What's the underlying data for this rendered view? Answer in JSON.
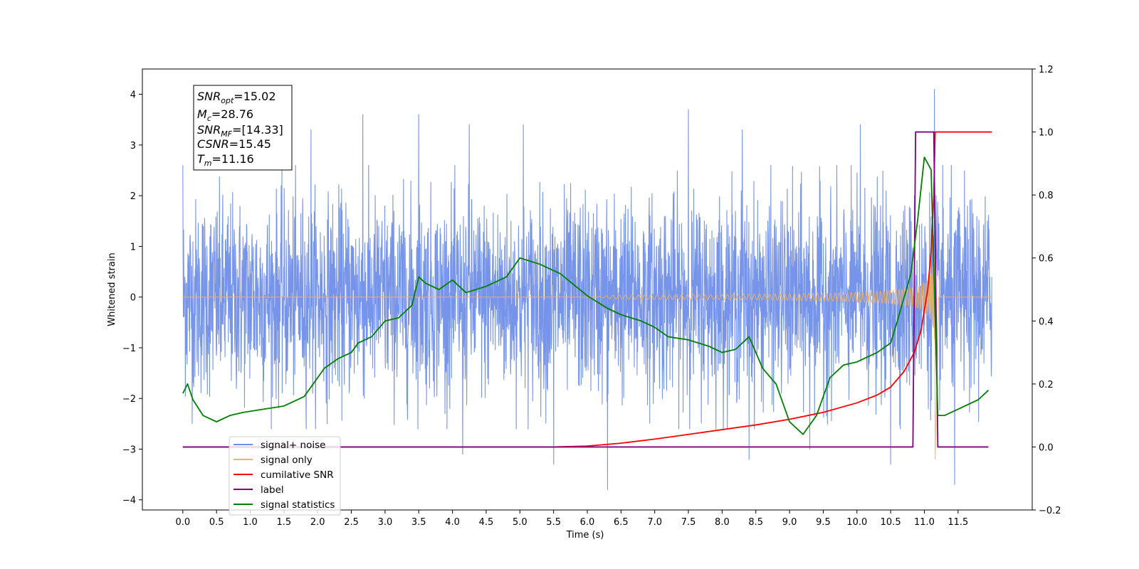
{
  "chart_data": {
    "type": "line",
    "xlabel": "Time (s)",
    "ylabel": "Whitened strain",
    "xlim": [
      -0.6,
      12.6
    ],
    "ylim": [
      -4.2,
      4.5
    ],
    "y2lim": [
      -0.2,
      1.2
    ],
    "xticks": [
      "0.0",
      "0.5",
      "1.0",
      "1.5",
      "2.0",
      "2.5",
      "3.0",
      "3.5",
      "4.0",
      "4.5",
      "5.0",
      "5.5",
      "6.0",
      "6.5",
      "7.0",
      "7.5",
      "8.0",
      "8.5",
      "9.0",
      "9.5",
      "10.0",
      "10.5",
      "11.0",
      "11.5"
    ],
    "yticks": [
      "4",
      "3",
      "2",
      "1",
      "0",
      "−1",
      "−2",
      "−3",
      "−4"
    ],
    "y2ticks": [
      "1.2",
      "1.0",
      "0.8",
      "0.6",
      "0.4",
      "0.2",
      "0.0",
      "−0.2"
    ],
    "annotation": {
      "lines": [
        {
          "sym": "SNR",
          "sub": "opt",
          "value": "=15.02"
        },
        {
          "sym": "M",
          "sub": "c",
          "value": "=28.76"
        },
        {
          "sym": "SNR",
          "sub": "MF",
          "value": "=[14.33]"
        },
        {
          "sym": "CSNR",
          "sub": "",
          "value": "=15.45"
        },
        {
          "sym": "T",
          "sub": "m",
          "value": "=11.16"
        }
      ]
    },
    "legend": {
      "placement": "lower-left",
      "entries": [
        {
          "label": "signal+ noise",
          "color": "#6f8ee8"
        },
        {
          "label": "signal only",
          "color": "#f5b25a"
        },
        {
          "label": "cumilative SNR",
          "color": "#ff0000"
        },
        {
          "label": "label",
          "color": "#800080"
        },
        {
          "label": "signal statistics",
          "color": "#008000"
        }
      ]
    },
    "series": [
      {
        "name": "signal+ noise",
        "axis": "left",
        "kind": "noise",
        "x_range": [
          0.0,
          12.0
        ],
        "sigma": 0.95,
        "spikes": [
          [
            0.0,
            2.6
          ],
          [
            1.9,
            3.3
          ],
          [
            2.67,
            3.6
          ],
          [
            3.5,
            3.6
          ],
          [
            4.15,
            -3.1
          ],
          [
            4.25,
            3.4
          ],
          [
            5.05,
            3.4
          ],
          [
            5.5,
            -3.3
          ],
          [
            6.3,
            3.8
          ],
          [
            6.3,
            -3.8
          ],
          [
            7.5,
            3.7
          ],
          [
            8.3,
            3.3
          ],
          [
            8.4,
            -3.2
          ],
          [
            9.3,
            3.5
          ],
          [
            9.3,
            -3.0
          ],
          [
            10.05,
            3.4
          ],
          [
            10.5,
            -3.3
          ],
          [
            11.15,
            4.1
          ],
          [
            11.45,
            -3.7
          ]
        ]
      },
      {
        "name": "signal only",
        "axis": "left",
        "kind": "chirp",
        "start": 6.0,
        "merger": 11.16,
        "peak": -3.2
      },
      {
        "name": "cumilative SNR",
        "axis": "right",
        "x": [
          0.0,
          5.5,
          6.0,
          6.5,
          7.0,
          7.5,
          8.0,
          8.5,
          9.0,
          9.5,
          10.0,
          10.3,
          10.5,
          10.7,
          10.85,
          10.95,
          11.05,
          11.1,
          11.14,
          11.16,
          12.0
        ],
        "y": [
          0.0,
          0.0,
          0.003,
          0.012,
          0.025,
          0.04,
          0.055,
          0.07,
          0.088,
          0.11,
          0.14,
          0.165,
          0.19,
          0.24,
          0.3,
          0.37,
          0.5,
          0.62,
          0.8,
          1.0,
          1.0
        ]
      },
      {
        "name": "label",
        "axis": "right",
        "x": [
          0.0,
          10.83,
          10.87,
          11.14,
          11.2,
          11.95
        ],
        "y": [
          0.0,
          0.0,
          1.0,
          1.0,
          0.0,
          0.0
        ]
      },
      {
        "name": "signal statistics",
        "axis": "right",
        "x": [
          0.0,
          0.07,
          0.15,
          0.3,
          0.5,
          0.7,
          0.9,
          1.2,
          1.5,
          1.8,
          2.1,
          2.3,
          2.5,
          2.6,
          2.8,
          3.0,
          3.2,
          3.4,
          3.5,
          3.6,
          3.8,
          4.0,
          4.2,
          4.5,
          4.8,
          5.0,
          5.3,
          5.6,
          6.0,
          6.3,
          6.5,
          6.8,
          7.0,
          7.2,
          7.5,
          7.8,
          8.0,
          8.2,
          8.4,
          8.6,
          8.8,
          9.0,
          9.2,
          9.4,
          9.6,
          9.8,
          10.0,
          10.3,
          10.5,
          10.6,
          10.8,
          10.9,
          11.0,
          11.1,
          11.2,
          11.3,
          11.5,
          11.8,
          11.95
        ],
        "y": [
          0.17,
          0.2,
          0.15,
          0.1,
          0.08,
          0.1,
          0.11,
          0.12,
          0.13,
          0.16,
          0.25,
          0.28,
          0.3,
          0.33,
          0.35,
          0.4,
          0.41,
          0.45,
          0.54,
          0.52,
          0.5,
          0.53,
          0.49,
          0.51,
          0.54,
          0.6,
          0.58,
          0.55,
          0.48,
          0.44,
          0.42,
          0.4,
          0.38,
          0.35,
          0.34,
          0.32,
          0.3,
          0.31,
          0.35,
          0.25,
          0.2,
          0.08,
          0.04,
          0.1,
          0.22,
          0.26,
          0.27,
          0.3,
          0.33,
          0.4,
          0.55,
          0.72,
          0.92,
          0.88,
          0.1,
          0.1,
          0.12,
          0.15,
          0.18
        ]
      }
    ]
  }
}
